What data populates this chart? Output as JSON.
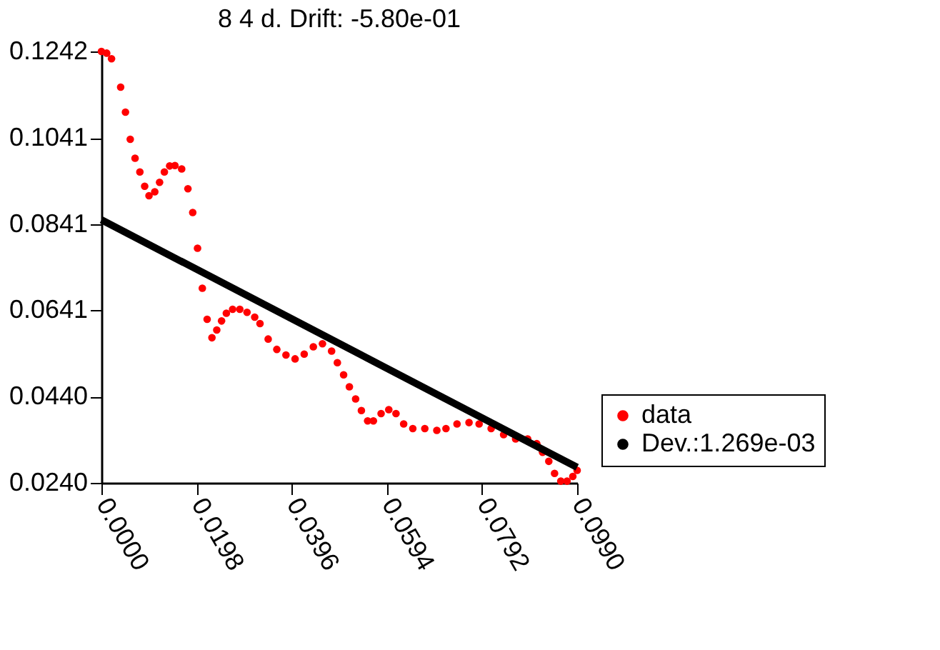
{
  "chart_data": {
    "type": "scatter",
    "title": "8 4 d. Drift: -5.80e-01",
    "xlim": [
      0.0,
      0.099
    ],
    "xticks": [
      {
        "value": 0,
        "label": "0.0000"
      },
      0.0198,
      0.0396,
      0.0594,
      0.0792,
      {
        "value": 0.099,
        "label": "0.0990"
      }
    ],
    "ylim": [
      0.024,
      0.1242
    ],
    "yticks": [
      {
        "value": 0.024,
        "label": "0.0240"
      },
      {
        "value": 0.044,
        "label": "0.0440"
      },
      0.0641,
      0.0841,
      0.1041,
      0.1242
    ],
    "grid": false,
    "legend": "right",
    "series": [
      {
        "name": "data",
        "color": "#ff0000",
        "marker": "circle",
        "x": [
          0,
          0.0011,
          0.0021,
          0.004,
          0.005,
          0.006,
          0.007,
          0.008,
          0.009,
          0.0099,
          0.0111,
          0.0121,
          0.0131,
          0.0142,
          0.0153,
          0.0167,
          0.018,
          0.019,
          0.02,
          0.021,
          0.022,
          0.023,
          0.024,
          0.025,
          0.026,
          0.0273,
          0.0288,
          0.0303,
          0.0319,
          0.033,
          0.0347,
          0.0365,
          0.0384,
          0.0403,
          0.0422,
          0.0441,
          0.046,
          0.0479,
          0.0491,
          0.0504,
          0.0516,
          0.0529,
          0.0541,
          0.0554,
          0.0566,
          0.0582,
          0.0598,
          0.0613,
          0.0629,
          0.0648,
          0.0673,
          0.0698,
          0.0717,
          0.074,
          0.0765,
          0.0786,
          0.0811,
          0.0837,
          0.0862,
          0.0887,
          0.0906,
          0.0918,
          0.0931,
          0.0943,
          0.0956,
          0.0969,
          0.0981,
          0.099
        ],
        "values": [
          0.1242,
          0.1238,
          0.1225,
          0.1159,
          0.1101,
          0.1038,
          0.0994,
          0.0962,
          0.0929,
          0.0907,
          0.0916,
          0.0938,
          0.0962,
          0.0976,
          0.0977,
          0.0969,
          0.0923,
          0.0868,
          0.0785,
          0.0692,
          0.062,
          0.0577,
          0.0595,
          0.0616,
          0.0634,
          0.0643,
          0.0643,
          0.0636,
          0.0625,
          0.061,
          0.0574,
          0.055,
          0.0537,
          0.0528,
          0.0539,
          0.0556,
          0.0563,
          0.0546,
          0.0519,
          0.0491,
          0.0463,
          0.0435,
          0.0408,
          0.0384,
          0.0384,
          0.0401,
          0.041,
          0.0401,
          0.0377,
          0.0366,
          0.0366,
          0.0362,
          0.0366,
          0.0377,
          0.038,
          0.0377,
          0.0366,
          0.0352,
          0.0342,
          0.0342,
          0.0331,
          0.0311,
          0.029,
          0.0262,
          0.0244,
          0.0244,
          0.0255,
          0.0269
        ]
      },
      {
        "name": "Dev.:1.269e-03",
        "color": "#000000",
        "type": "line",
        "x": [
          0,
          0.099
        ],
        "values": [
          0.0851,
          0.0276
        ]
      }
    ]
  }
}
